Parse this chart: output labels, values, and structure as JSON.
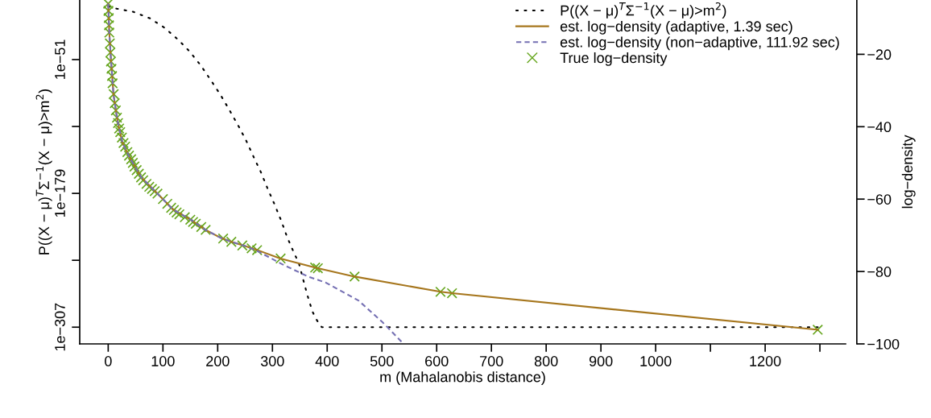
{
  "chart_data": {
    "type": "line",
    "xlabel": "m (Mahalanobis distance)",
    "ylabel": "P((X − μ)$^{T}$Σ$^{−1}$(X − μ)>m$^{2}$)",
    "y2label": "log−density",
    "xlim": [
      -52,
      1347
    ],
    "xticks": [
      0,
      100,
      200,
      300,
      400,
      500,
      600,
      700,
      800,
      900,
      1000,
      {
        "value": 1100,
        "label": null
      },
      1200,
      {
        "value": 1300,
        "label": null
      }
    ],
    "ylim": [
      1e-323,
      1000000.0
    ],
    "yticks": [
      {
        "value": 1e-51,
        "label": "1e−51"
      },
      {
        "value": 1e-115,
        "label": null
      },
      {
        "value": 1e-179,
        "label": "1e−179"
      },
      {
        "value": 1e-243,
        "label": null
      },
      {
        "value": 1e-307,
        "label": "1e−307"
      }
    ],
    "y2lim": [
      -100,
      -5
    ],
    "y2ticks": [
      {
        "value": -20,
        "label": "−20"
      },
      {
        "value": -40,
        "label": "−40"
      },
      {
        "value": -60,
        "label": "−60"
      },
      {
        "value": -80,
        "label": "−80"
      },
      {
        "value": -100,
        "label": "−100"
      }
    ],
    "log": "y",
    "grid": false,
    "legend": "top right",
    "series": [
      {
        "name": "P((X − μ)$^{T}$Σ$^{−1}$(X − μ)>m$^{2}$)",
        "axis": "y",
        "color": "#000000",
        "line_style": "dotted",
        "marker": "none",
        "x": [
          0,
          15.5,
          46.4,
          76.5,
          103,
          127,
          149,
          169,
          187,
          205,
          221,
          237,
          252,
          265,
          279,
          291,
          304,
          316,
          327,
          340,
          348,
          356,
          364,
          373,
          381,
          390,
          1302
        ],
        "values": [
          1,
          0.005,
          4e-06,
          2.5e-12,
          2.5e-21,
          2.5e-32,
          4e-44,
          3e-57,
          4e-71,
          2.5e-85,
          1.3e-99,
          2.5e-114,
          3e-129,
          4e-144,
          1.6e-159,
          6e-175,
          2e-190,
          8e-206,
          1e-221,
          2e-237,
          6e-246,
          8e-262,
          2.5e-277,
          1e-292,
          6e-301,
          1e-307,
          1e-307
        ]
      },
      {
        "name": "est. log−density (adaptive, 1.39 sec)",
        "axis": "y2",
        "color": "#A6761D",
        "line_style": "solid",
        "marker": "none",
        "x": [
          0,
          2,
          4.4,
          9.7,
          17,
          26,
          40.6,
          60.5,
          89.5,
          118.6,
          152,
          176.6,
          205.7,
          225,
          249,
          271,
          314.5,
          378,
          450,
          607,
          628,
          1296
        ],
        "values": [
          -6,
          -14,
          -20,
          -31.1,
          -38.4,
          -44.4,
          -48.9,
          -54,
          -58.4,
          -62.9,
          -65.8,
          -68.4,
          -70.7,
          -71.8,
          -72.9,
          -74,
          -76.4,
          -78.9,
          -81.4,
          -85.6,
          -86,
          -96.1
        ]
      },
      {
        "name": "est. log−density (non−adaptive, 111.92 sec)",
        "axis": "y2",
        "color": "#7570B3",
        "line_style": "dashed",
        "marker": "none",
        "x": [
          0,
          2,
          4.4,
          9.7,
          17,
          26,
          40.6,
          60.5,
          89.5,
          118.6,
          152,
          176.6,
          205.7,
          225,
          249,
          272,
          318,
          365,
          398,
          457,
          501,
          537
        ],
        "values": [
          -6,
          -14,
          -20,
          -31.1,
          -38.4,
          -44.4,
          -48.9,
          -54,
          -58.4,
          -62.9,
          -65.8,
          -68.4,
          -70.7,
          -71.8,
          -72.9,
          -74.3,
          -78,
          -81.4,
          -83.1,
          -88,
          -94,
          -99.6
        ]
      },
      {
        "name": "True log−density",
        "type": "scatter",
        "axis": "y2",
        "color": "#66A61E",
        "marker": "cross",
        "x": [
          0,
          0.5,
          1,
          1.5,
          2,
          3,
          4,
          5,
          6,
          7,
          8,
          10,
          12,
          14,
          16,
          18,
          20,
          22,
          25,
          28,
          31,
          35,
          38,
          42,
          45,
          48,
          52,
          56,
          60,
          64,
          70,
          75,
          80,
          85,
          90,
          100,
          108,
          115,
          120,
          125,
          130,
          140,
          150,
          155,
          160,
          170,
          178,
          210,
          225,
          245,
          262,
          272,
          315,
          378,
          383,
          450,
          607,
          628,
          1296
        ],
        "values": [
          -6,
          -8,
          -10,
          -12,
          -14,
          -17,
          -19.5,
          -22,
          -24,
          -26,
          -28,
          -31,
          -33.5,
          -35.5,
          -37.5,
          -39,
          -40.5,
          -41.5,
          -43,
          -44.5,
          -45.5,
          -47,
          -48,
          -49,
          -50,
          -51,
          -52,
          -53,
          -54,
          -54.8,
          -55.8,
          -56.6,
          -57.2,
          -57.8,
          -58.5,
          -60,
          -61.3,
          -62.4,
          -63,
          -63.7,
          -64.2,
          -65,
          -65.7,
          -66.3,
          -66.8,
          -67.7,
          -68.5,
          -70.9,
          -71.8,
          -72.8,
          -73.6,
          -74.1,
          -76.4,
          -78.9,
          -79.1,
          -81.4,
          -85.6,
          -86,
          -96.1
        ]
      }
    ]
  }
}
